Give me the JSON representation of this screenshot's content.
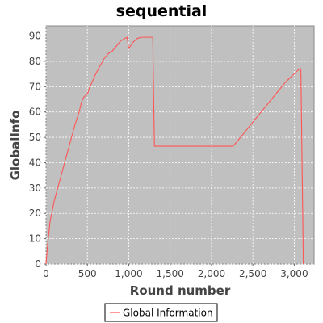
{
  "chart_data": {
    "type": "line",
    "title": "sequential",
    "xlabel": "Round number",
    "ylabel": "GlobalInfo",
    "xlim": [
      0,
      3240
    ],
    "ylim": [
      0,
      94
    ],
    "x_ticks": [
      0,
      500,
      1000,
      1500,
      2000,
      2500,
      3000
    ],
    "x_tick_labels": [
      "0",
      "500",
      "1,000",
      "1,500",
      "2,000",
      "2,500",
      "3,000"
    ],
    "y_ticks": [
      0,
      10,
      20,
      30,
      40,
      50,
      60,
      70,
      80,
      90
    ],
    "y_tick_labels": [
      "0",
      "10",
      "20",
      "30",
      "40",
      "50",
      "60",
      "70",
      "80",
      "90"
    ],
    "grid": true,
    "legend_position": "bottom",
    "plot_background": "#c0c0c0",
    "grid_color": "#ffffff",
    "series": [
      {
        "name": "Global Information",
        "color": "#ff5555",
        "x": [
          0,
          20,
          50,
          100,
          150,
          200,
          250,
          300,
          350,
          400,
          430,
          460,
          500,
          530,
          560,
          600,
          650,
          700,
          750,
          800,
          850,
          900,
          950,
          980,
          1000,
          1050,
          1100,
          1150,
          1200,
          1250,
          1290,
          1310,
          1400,
          1600,
          1800,
          2000,
          2200,
          2260,
          2300,
          2350,
          2400,
          2500,
          2600,
          2700,
          2800,
          2900,
          3000,
          3060,
          3080,
          3110
        ],
        "y": [
          0,
          8,
          17,
          25,
          31,
          37,
          43,
          49,
          55,
          60,
          64,
          66,
          67,
          70,
          72,
          75,
          78,
          81,
          83,
          84,
          86,
          88,
          89,
          89.5,
          85,
          87.5,
          89,
          89.5,
          89.5,
          89.5,
          89.5,
          46.5,
          46.5,
          46.5,
          46.5,
          46.5,
          46.5,
          46.5,
          48,
          50,
          52,
          56,
          60,
          64,
          68,
          72,
          75,
          77,
          77,
          0
        ]
      }
    ]
  }
}
